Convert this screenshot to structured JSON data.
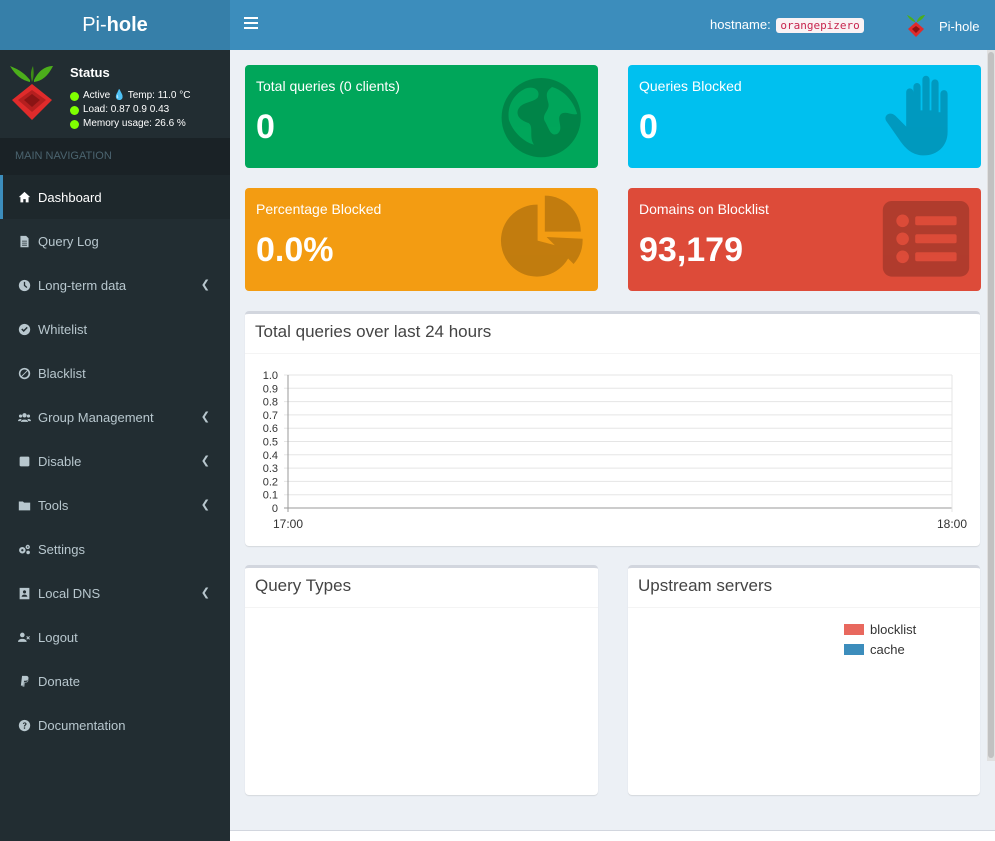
{
  "brand": {
    "prefix": "Pi-",
    "bold": "hole"
  },
  "status": {
    "title": "Status",
    "active": "Active",
    "temp": "Temp: 11.0 °C",
    "load": "Load:  0.87  0.9  0.43",
    "memory": "Memory usage:  26.6 %"
  },
  "nav": {
    "header": "MAIN NAVIGATION",
    "items": [
      {
        "label": "Dashboard",
        "icon": "home-icon"
      },
      {
        "label": "Query Log",
        "icon": "file-icon"
      },
      {
        "label": "Long-term data",
        "icon": "clock-icon"
      },
      {
        "label": "Whitelist",
        "icon": "check-circle-icon"
      },
      {
        "label": "Blacklist",
        "icon": "ban-icon"
      },
      {
        "label": "Group Management",
        "icon": "users-icon"
      },
      {
        "label": "Disable",
        "icon": "stop-icon"
      },
      {
        "label": "Tools",
        "icon": "folder-icon"
      },
      {
        "label": "Settings",
        "icon": "gears-icon"
      },
      {
        "label": "Local DNS",
        "icon": "address-book-icon"
      },
      {
        "label": "Logout",
        "icon": "user-times-icon"
      },
      {
        "label": "Donate",
        "icon": "paypal-icon"
      },
      {
        "label": "Documentation",
        "icon": "question-circle-icon"
      }
    ]
  },
  "topbar": {
    "hostname_label": "hostname:",
    "hostname_value": "orangepizero",
    "user_label": "Pi-hole"
  },
  "stats": {
    "total_queries": {
      "label": "Total queries (0 clients)",
      "value": "0"
    },
    "queries_blocked": {
      "label": "Queries Blocked",
      "value": "0"
    },
    "percent_blocked": {
      "label": "Percentage Blocked",
      "value": "0.0%"
    },
    "domains_blocklist": {
      "label": "Domains on Blocklist",
      "value": "93,179"
    }
  },
  "colors": {
    "green": "#00a65a",
    "aqua": "#00c0ef",
    "yellow": "#f39c12",
    "red": "#dd4b39",
    "sidebar": "#222d32",
    "header": "#3c8dbc"
  },
  "boxes": {
    "queries_24h": "Total queries over last 24 hours",
    "query_types": "Query Types",
    "upstream": "Upstream servers"
  },
  "chart_data": {
    "type": "line",
    "title": "Total queries over last 24 hours",
    "x_tick_labels": [
      "17:00",
      "18:00"
    ],
    "y_tick_labels": [
      "1.0",
      "0.9",
      "0.8",
      "0.7",
      "0.6",
      "0.5",
      "0.4",
      "0.3",
      "0.2",
      "0.1",
      "0"
    ],
    "ylim": [
      0,
      1
    ],
    "grid": true,
    "series": []
  },
  "upstream_legend": [
    {
      "name": "blocklist",
      "color": "#e8685e"
    },
    {
      "name": "cache",
      "color": "#3c8dbc"
    }
  ]
}
